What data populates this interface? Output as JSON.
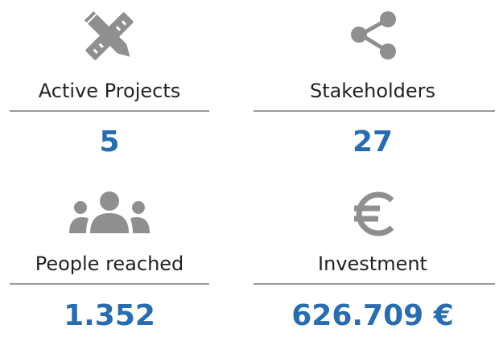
{
  "stats": [
    {
      "label": "Active Projects",
      "value": "5"
    },
    {
      "label": "Stakeholders",
      "value": "27"
    },
    {
      "label": "People reached",
      "value": "1.352"
    },
    {
      "label": "Investment",
      "value": "626.709 €"
    }
  ]
}
